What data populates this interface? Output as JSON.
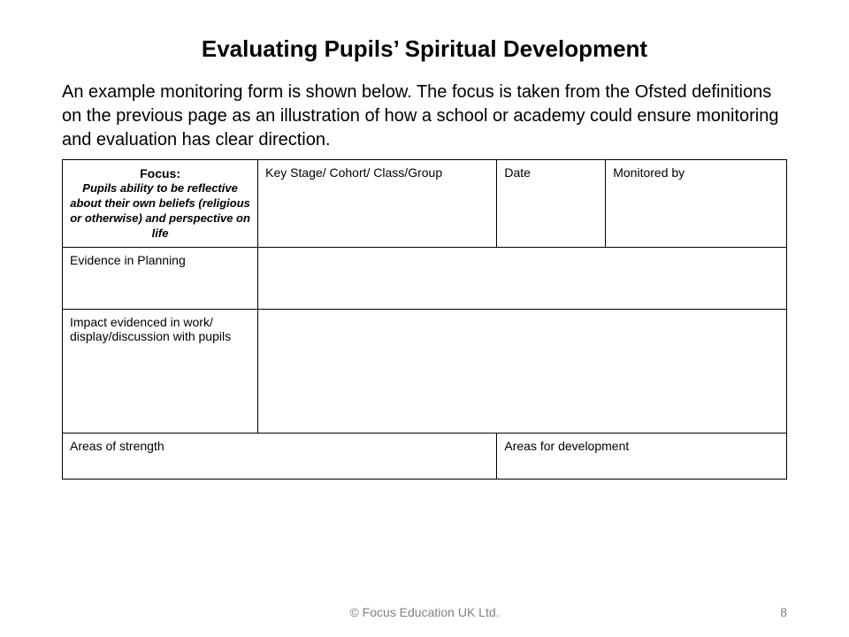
{
  "title": "Evaluating Pupils’ Spiritual Development",
  "intro": "An example monitoring form is shown below. The focus is taken from the Ofsted definitions on the previous page as an illustration of how a school or academy could ensure monitoring and evaluation has clear direction.",
  "table": {
    "focus_label": "Focus:",
    "focus_desc": "Pupils ability to be reflective about their own beliefs (religious or otherwise) and perspective on life",
    "header_keystage": "Key Stage/ Cohort/ Class/Group",
    "header_date": "Date",
    "header_monitored": "Monitored by",
    "row_evidence": "Evidence in Planning",
    "row_impact": "Impact evidenced in work/ display/discussion with pupils",
    "row_strength": "Areas of strength",
    "row_development": "Areas for development",
    "col_widths": {
      "c1": "27%",
      "c2": "33%",
      "c3": "15%",
      "c4": "25%"
    }
  },
  "footer": {
    "copyright": "© Focus Education UK Ltd.",
    "page_number": "8"
  },
  "colors": {
    "text": "#000000",
    "footer": "#808080",
    "border": "#000000",
    "background": "#ffffff"
  }
}
